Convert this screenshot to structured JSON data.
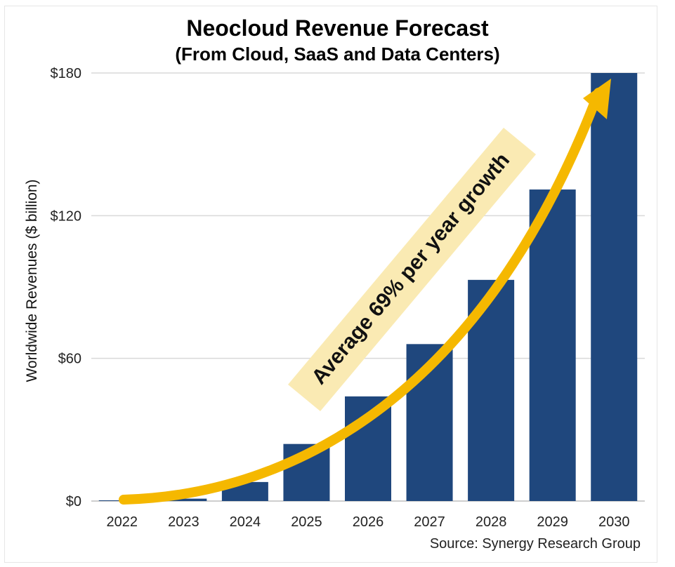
{
  "chart_data": {
    "type": "bar",
    "title": "Neocloud Revenue Forecast",
    "subtitle": "(From Cloud, SaaS and Data Centers)",
    "ylabel": "Worldwide Revenues ($ billion)",
    "xlabel": "",
    "categories": [
      "2022",
      "2023",
      "2024",
      "2025",
      "2026",
      "2027",
      "2028",
      "2029",
      "2030"
    ],
    "values": [
      0.3,
      1,
      8,
      24,
      44,
      66,
      93,
      131,
      180
    ],
    "ylim": [
      0,
      180
    ],
    "yticks": [
      0,
      60,
      120,
      180
    ],
    "ytick_labels": [
      "$0",
      "$60",
      "$120",
      "$180"
    ],
    "grid": true,
    "bar_color": "#1f477d",
    "annotation": {
      "text": "Average 69% per year growth",
      "arrow_color": "#f5b800",
      "box_color": "#faeab3"
    },
    "source": "Source: Synergy Research Group"
  }
}
